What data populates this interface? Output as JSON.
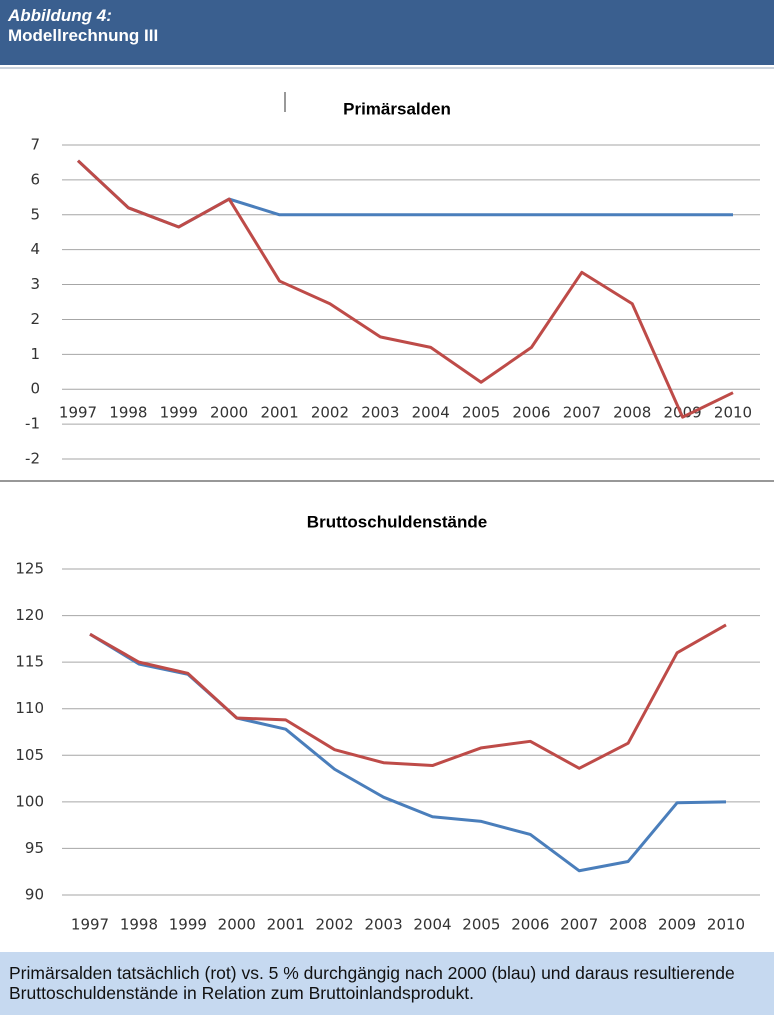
{
  "header": {
    "label": "Abbildung 4:",
    "title": "Modellrechnung III"
  },
  "chart_data": [
    {
      "type": "line",
      "title": "Primärsalden",
      "categories": [
        "1997",
        "1998",
        "1999",
        "2000",
        "2001",
        "2002",
        "2003",
        "2004",
        "2005",
        "2006",
        "2007",
        "2008",
        "2009",
        "2010"
      ],
      "series": [
        {
          "color": "#4a7ebb",
          "values": [
            6.55,
            5.2,
            4.65,
            5.45,
            5,
            5,
            5,
            5,
            5,
            5,
            5,
            5,
            5,
            5
          ]
        },
        {
          "color": "#be4b48",
          "values": [
            6.55,
            5.2,
            4.65,
            5.45,
            3.1,
            2.45,
            1.5,
            1.2,
            0.2,
            1.2,
            3.35,
            2.45,
            -0.8,
            -0.1
          ]
        }
      ],
      "ylim": [
        -2,
        7
      ],
      "yticks": [
        -2,
        -1,
        0,
        1,
        2,
        3,
        4,
        5,
        6,
        7
      ],
      "grid": true
    },
    {
      "type": "line",
      "title": "Bruttoschuldenstände",
      "categories": [
        "1997",
        "1998",
        "1999",
        "2000",
        "2001",
        "2002",
        "2003",
        "2004",
        "2005",
        "2006",
        "2007",
        "2008",
        "2009",
        "2010"
      ],
      "series": [
        {
          "color": "#4a7ebb",
          "values": [
            118,
            114.8,
            113.7,
            109,
            107.8,
            103.5,
            100.5,
            98.4,
            97.9,
            96.5,
            92.6,
            93.6,
            99.9,
            100
          ]
        },
        {
          "color": "#be4b48",
          "values": [
            118,
            115,
            113.8,
            109,
            108.8,
            105.6,
            104.2,
            103.9,
            105.8,
            106.5,
            103.6,
            106.3,
            116,
            119
          ]
        }
      ],
      "ylim": [
        90,
        125
      ],
      "yticks": [
        90,
        95,
        100,
        105,
        110,
        115,
        120,
        125
      ],
      "grid": true
    }
  ],
  "caption": "Primärsalden tatsächlich (rot) vs. 5 % durchgängig nach 2000 (blau) und daraus resultierende Bruttoschuldenstände in Relation zum Bruttoinlandsprodukt."
}
